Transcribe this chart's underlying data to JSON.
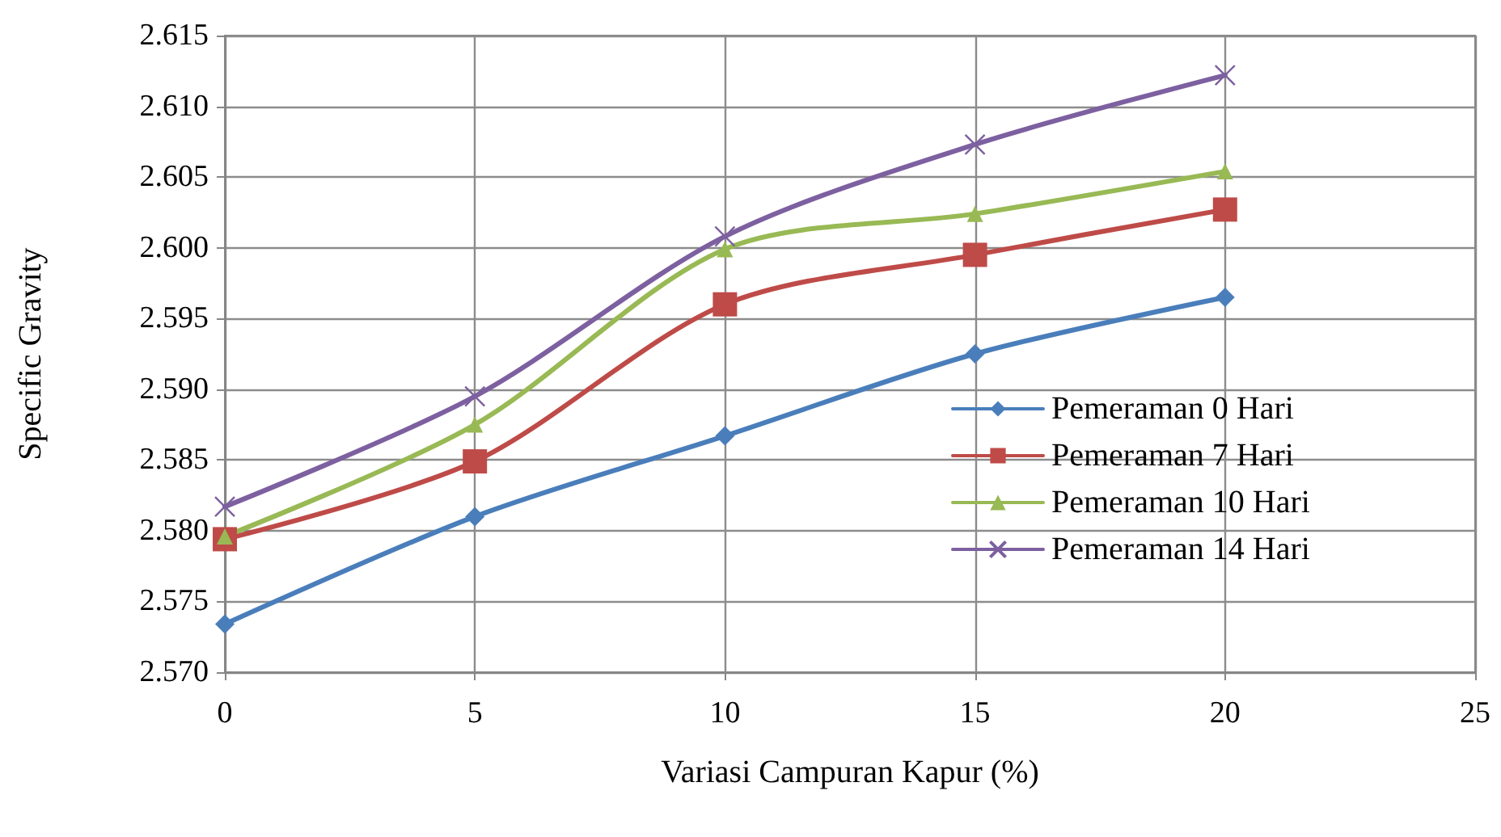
{
  "chart_data": {
    "type": "line",
    "xlabel": "Variasi Campuran Kapur (%)",
    "ylabel": "Specific Gravity",
    "x": [
      0,
      5,
      10,
      15,
      20
    ],
    "series": [
      {
        "name": "Pemeraman 0 Hari",
        "color": "#4a7ebb",
        "marker": "diamond",
        "values": [
          2.5734,
          2.581,
          2.5867,
          2.5925,
          2.5965
        ]
      },
      {
        "name": "Pemeraman 7 Hari",
        "color": "#be4b48",
        "marker": "square",
        "values": [
          2.5794,
          2.5849,
          2.596,
          2.5995,
          2.6027
        ]
      },
      {
        "name": "Pemeraman 10 Hari",
        "color": "#98b954",
        "marker": "triangle",
        "values": [
          2.5796,
          2.5875,
          2.5999,
          2.6024,
          2.6054
        ]
      },
      {
        "name": "Pemeraman 14 Hari",
        "color": "#7d60a0",
        "marker": "cross",
        "values": [
          2.5817,
          2.5895,
          2.6008,
          2.6073,
          2.6122
        ]
      }
    ],
    "xlim": [
      0,
      25
    ],
    "xticks": [
      0,
      5,
      10,
      15,
      20,
      25
    ],
    "ylim": [
      2.57,
      2.615
    ],
    "yticks": [
      {
        "value": 2.57,
        "label": "2.570"
      },
      {
        "value": 2.575,
        "label": "2.575"
      },
      {
        "value": 2.58,
        "label": "2.580"
      },
      {
        "value": 2.585,
        "label": "2.585"
      },
      {
        "value": 2.59,
        "label": "2.590"
      },
      {
        "value": 2.595,
        "label": "2.595"
      },
      {
        "value": 2.6,
        "label": "2.600"
      },
      {
        "value": 2.605,
        "label": "2.605"
      },
      {
        "value": 2.61,
        "label": "2.610"
      },
      {
        "value": 2.615,
        "label": "2.615"
      }
    ],
    "grid": true,
    "legend": "right",
    "line_style": "solid"
  }
}
